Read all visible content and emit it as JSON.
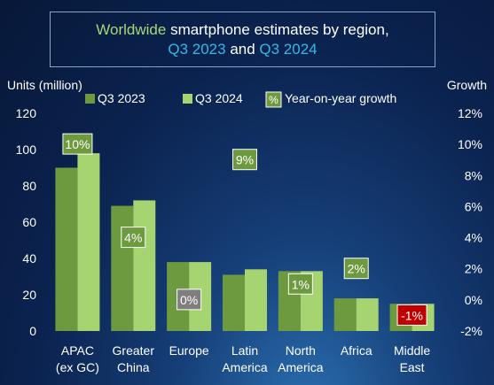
{
  "title": {
    "prefix": "Worldwide",
    "middle": " smartphone estimates by region,",
    "q1": "Q3 2023",
    "and": " and ",
    "q2": "Q3 2024"
  },
  "colors": {
    "series_2023": "#6e9a3f",
    "series_2024": "#a6d470",
    "badge_positive": "#6e9a3f",
    "badge_neutral": "#7f7f7f",
    "badge_negative": "#c00000",
    "title_green": "#a8d679",
    "title_blue": "#35b8e8"
  },
  "chart_data": {
    "type": "bar",
    "categories": [
      [
        "APAC",
        "(ex GC)"
      ],
      [
        "Greater",
        "China"
      ],
      [
        "Europe"
      ],
      [
        "Latin",
        "America"
      ],
      [
        "North",
        "America"
      ],
      [
        "Africa"
      ],
      [
        "Middle",
        "East"
      ]
    ],
    "series": [
      {
        "name": "Q3 2023",
        "values": [
          90,
          69,
          38,
          31,
          33,
          18,
          15
        ]
      },
      {
        "name": "Q3 2024",
        "values": [
          98,
          72,
          38,
          34,
          33,
          18,
          15
        ]
      }
    ],
    "growth": {
      "name": "Year-on-year growth",
      "values": [
        10,
        4,
        0,
        9,
        1,
        2,
        -1
      ],
      "labels": [
        "10%",
        "4%",
        "0%",
        "9%",
        "1%",
        "2%",
        "-1%"
      ]
    },
    "ylabel": "Units (million)",
    "ylabel_right": "Growth",
    "ylim": [
      0,
      120
    ],
    "yticks": [
      0,
      20,
      40,
      60,
      80,
      100,
      120
    ],
    "ylim_right": [
      -2,
      12
    ],
    "yticks_right": [
      "-2%",
      "0%",
      "2%",
      "4%",
      "6%",
      "8%",
      "10%",
      "12%"
    ],
    "legend": {
      "swatch_text": "%",
      "placement": "top"
    }
  }
}
